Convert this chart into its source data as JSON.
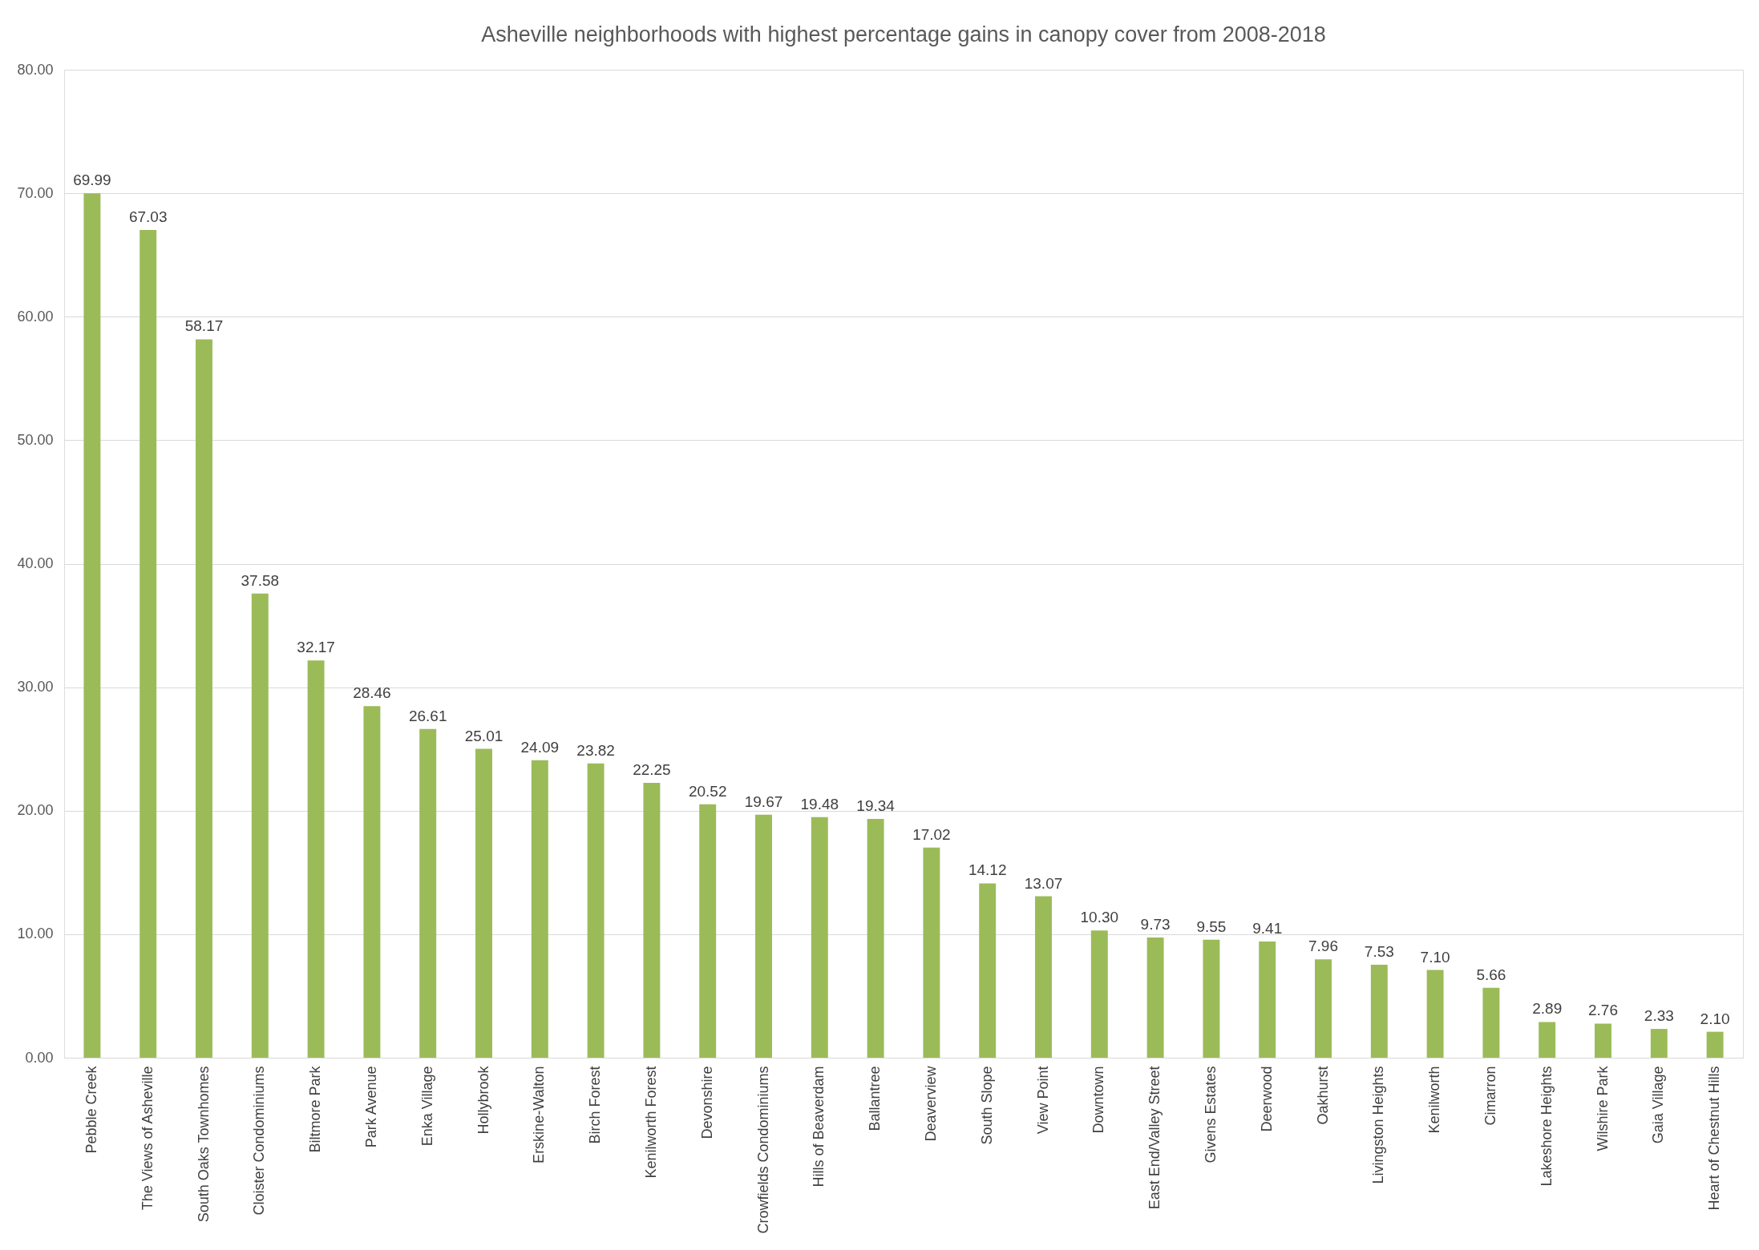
{
  "chart_data": {
    "type": "bar",
    "title": "Asheville neighborhoods with highest percentage gains in canopy cover from 2008-2018",
    "categories": [
      "Pebble Creek",
      "The Views of Asheville",
      "South Oaks Townhomes",
      "Cloister Condominiums",
      "Biltmore Park",
      "Park Avenue",
      "Enka Village",
      "Hollybrook",
      "Erskine-Walton",
      "Birch Forest",
      "Kenilworth Forest",
      "Devonshire",
      "Crowfields Condominiums",
      "Hills of Beaverdam",
      "Ballantree",
      "Deaverview",
      "South Slope",
      "View Point",
      "Downtown",
      "East End/Valley Street",
      "Givens Estates",
      "Deerwood",
      "Oakhurst",
      "Livingston Heights",
      "Kenilworth",
      "Cimarron",
      "Lakeshore Heights",
      "Wilshire Park",
      "Gaia Village",
      "Heart of Chestnut Hills"
    ],
    "values": [
      69.99,
      67.03,
      58.17,
      37.58,
      32.17,
      28.46,
      26.61,
      25.01,
      24.09,
      23.82,
      22.25,
      20.52,
      19.67,
      19.48,
      19.34,
      17.02,
      14.12,
      13.07,
      10.3,
      9.73,
      9.55,
      9.41,
      7.96,
      7.53,
      7.1,
      5.66,
      2.89,
      2.76,
      2.33,
      2.1
    ],
    "value_labels": [
      "69.99",
      "67.03",
      "58.17",
      "37.58",
      "32.17",
      "28.46",
      "26.61",
      "25.01",
      "24.09",
      "23.82",
      "22.25",
      "20.52",
      "19.67",
      "19.48",
      "19.34",
      "17.02",
      "14.12",
      "13.07",
      "10.30",
      "9.73",
      "9.55",
      "9.41",
      "7.96",
      "7.53",
      "7.10",
      "5.66",
      "2.89",
      "2.76",
      "2.33",
      "2.10"
    ],
    "color": "#9bbb59",
    "ylim": [
      0,
      80
    ],
    "yticks": [
      {
        "value": 0,
        "label": "0.00"
      },
      {
        "value": 10,
        "label": "10.00"
      },
      {
        "value": 20,
        "label": "20.00"
      },
      {
        "value": 30,
        "label": "30.00"
      },
      {
        "value": 40,
        "label": "40.00"
      },
      {
        "value": 50,
        "label": "50.00"
      },
      {
        "value": 60,
        "label": "60.00"
      },
      {
        "value": 70,
        "label": "70.00"
      },
      {
        "value": 80,
        "label": "80.00"
      }
    ],
    "grid": "y"
  }
}
